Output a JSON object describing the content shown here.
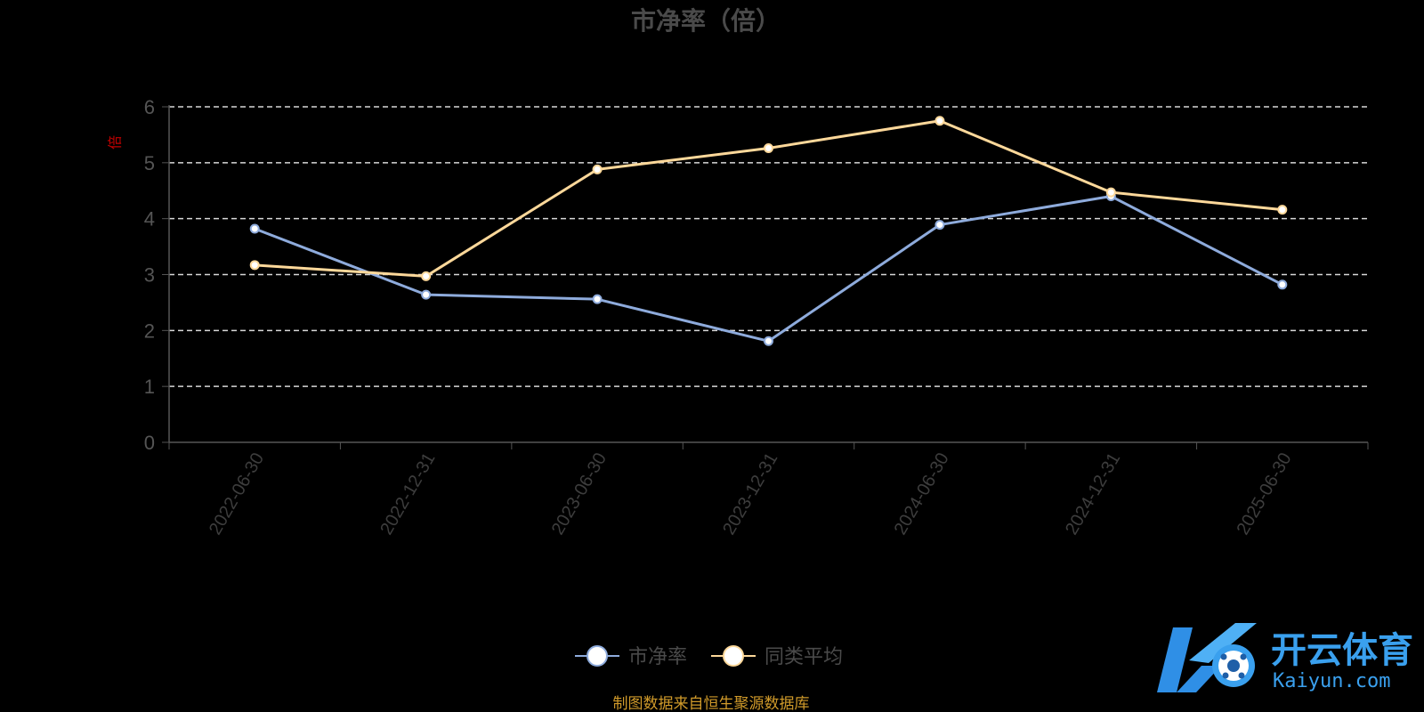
{
  "chart_data": {
    "type": "line",
    "title": "市净率（倍）",
    "ylabel": "倍",
    "ylim": [
      0,
      6
    ],
    "yticks": [
      "0",
      "1",
      "2",
      "3",
      "4",
      "5",
      "6"
    ],
    "categories": [
      "2022-06-30",
      "2022-12-31",
      "2023-06-30",
      "2023-12-31",
      "2024-06-30",
      "2024-12-31",
      "2025-06-30"
    ],
    "grid": true,
    "legend_position": "bottom",
    "series": [
      {
        "name": "市净率",
        "color": "#8eabdc",
        "values": [
          3.82,
          2.64,
          2.56,
          1.81,
          3.89,
          4.4,
          2.82
        ]
      },
      {
        "name": "同类平均",
        "color": "#fdd89a",
        "values": [
          3.17,
          2.97,
          4.88,
          5.26,
          5.75,
          4.47,
          4.16
        ]
      }
    ],
    "source": "制图数据来自恒生聚源数据库"
  },
  "watermark": {
    "brand_cn": "开云体育",
    "brand_en": "Kaiyun.com",
    "color": "#3aa0ee"
  }
}
